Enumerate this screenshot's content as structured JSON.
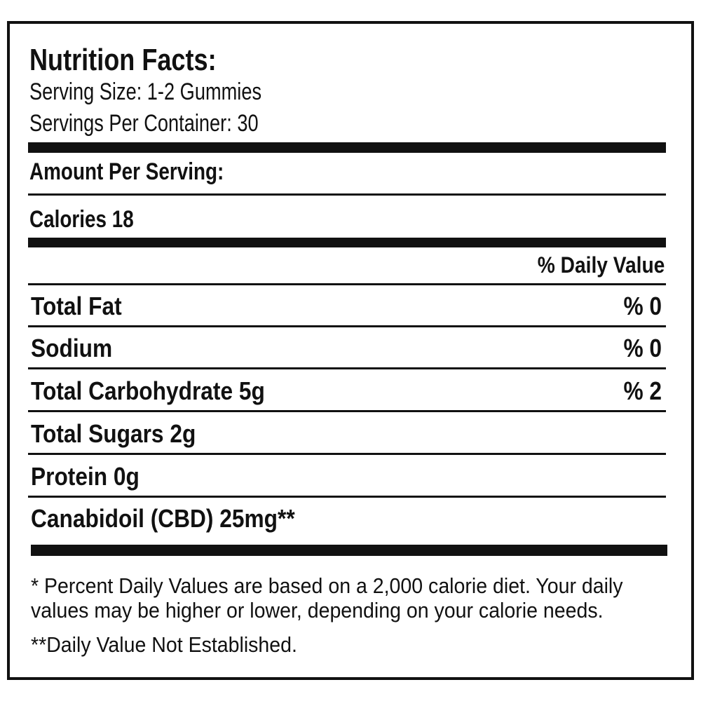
{
  "header": {
    "title": "Nutrition Facts:",
    "serving_size": "Serving Size: 1-2 Gummies",
    "servings_per_container": "Servings Per Container: 30"
  },
  "amount_per_serving": "Amount Per Serving:",
  "calories": "Calories 18",
  "daily_value_header": "% Daily Value",
  "rows": [
    {
      "label": "Total Fat",
      "value": "% 0"
    },
    {
      "label": "Sodium",
      "value": "% 0"
    },
    {
      "label": "Total Carbohydrate 5g",
      "value": "% 2"
    },
    {
      "label": "Total Sugars 2g"
    },
    {
      "label": "Protein 0g"
    },
    {
      "label": "Canabidoil (CBD) 25mg**"
    }
  ],
  "footnotes": [
    "* Percent Daily Values are based on a 2,000 calorie diet. Your daily values may be higher or lower, depending on your calorie needs.",
    "**Daily Value Not Established."
  ]
}
